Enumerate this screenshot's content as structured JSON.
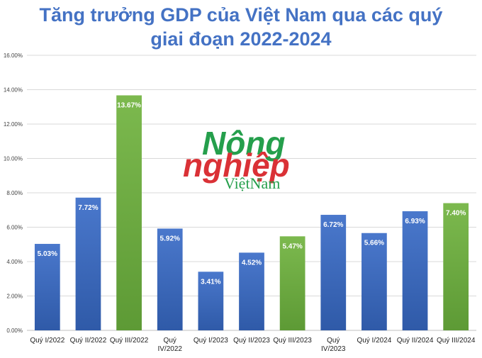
{
  "chart_data": {
    "type": "bar",
    "title_lines": [
      "Tăng trưởng GDP của Việt Nam qua các quý",
      "giai đoạn 2022-2024"
    ],
    "categories": [
      [
        "Quý I/2022"
      ],
      [
        "Quý II/2022"
      ],
      [
        "Quý III/2022"
      ],
      [
        "Quý",
        "IV/2022"
      ],
      [
        "Quý I/2023"
      ],
      [
        "Quý II/2023"
      ],
      [
        "Quý III/2023"
      ],
      [
        "Quý",
        "IV/2023"
      ],
      [
        "Quý I/2024"
      ],
      [
        "Quý II/2024"
      ],
      [
        "Quý III/2024"
      ]
    ],
    "values": [
      5.03,
      7.72,
      13.67,
      5.92,
      3.41,
      4.52,
      5.47,
      6.72,
      5.66,
      6.93,
      7.4
    ],
    "data_labels": [
      "5.03%",
      "7.72%",
      "13.67%",
      "5.92%",
      "3.41%",
      "4.52%",
      "5.47%",
      "6.72%",
      "5.66%",
      "6.93%",
      "7.40%"
    ],
    "highlight": [
      false,
      false,
      true,
      false,
      false,
      false,
      true,
      false,
      false,
      false,
      true
    ],
    "y_ticks": [
      0,
      2,
      4,
      6,
      8,
      10,
      12,
      14,
      16
    ],
    "y_tick_labels": [
      "0.00%",
      "2.00%",
      "4.00%",
      "6.00%",
      "8.00%",
      "10.00%",
      "12.00%",
      "14.00%",
      "16.00%"
    ],
    "ylim": [
      0,
      16
    ],
    "grid": true,
    "xlabel": "",
    "ylabel": "",
    "colors": {
      "title": "#4472c4",
      "blue_top": "#4a78cc",
      "blue_bottom": "#2f5aa8",
      "green_top": "#7cb94e",
      "green_bottom": "#5d9a35",
      "grid": "#d9d9d9",
      "axis": "#bfbfbf"
    }
  },
  "watermark": {
    "line1": "Nông",
    "line2": "nghiệp",
    "line3": "ViệtNam"
  }
}
